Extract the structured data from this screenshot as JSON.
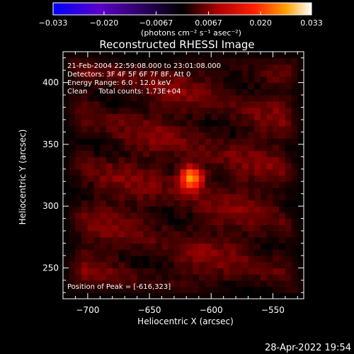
{
  "chart_data": {
    "type": "heatmap",
    "title": "Reconstructed RHESSI Image",
    "xlabel": "Heliocentric X (arcsec)",
    "ylabel": "Heliocentric Y (arcsec)",
    "xlim": [
      -720,
      -525
    ],
    "ylim": [
      225,
      425
    ],
    "x_ticks": [
      -700,
      -650,
      -600,
      -550
    ],
    "y_ticks": [
      250,
      300,
      350,
      400
    ],
    "x_tick_labels": [
      "−700",
      "−650",
      "−600",
      "−550"
    ],
    "y_tick_labels": [
      "250",
      "300",
      "350",
      "400"
    ],
    "colorbar": {
      "range": [
        -0.033,
        0.033
      ],
      "ticks": [
        -0.033,
        -0.02,
        -0.0067,
        0.0067,
        0.02,
        0.033
      ],
      "tick_labels": [
        "−0.033",
        "−0.020",
        "−0.0067",
        "0.0067",
        "0.020",
        "0.033"
      ],
      "unit_label": "(photons cm⁻² s⁻¹ asec⁻²)",
      "colormap_stops": [
        "#0000ff",
        "#5a00c8",
        "#000000",
        "#b00000",
        "#ff2000",
        "#ffa000",
        "#ffffff"
      ]
    },
    "annotations": {
      "time_range": "21-Feb-2004 22:59:08.000 to 23:01:08.000",
      "detectors": "Detectors: 3F 4F 5F 6F 7F 8F, Att 0",
      "energy": "Energy Range: 6.0 - 12.0 keV",
      "clean": "Clean     Total counts: 1.73E+04",
      "peak": "Position of Peak = [-616,323]"
    },
    "peak": {
      "x": -616,
      "y": 323,
      "value": 0.033
    },
    "background_level": 0.007
  },
  "footer": {
    "timestamp": "28-Apr-2022 19:54"
  }
}
